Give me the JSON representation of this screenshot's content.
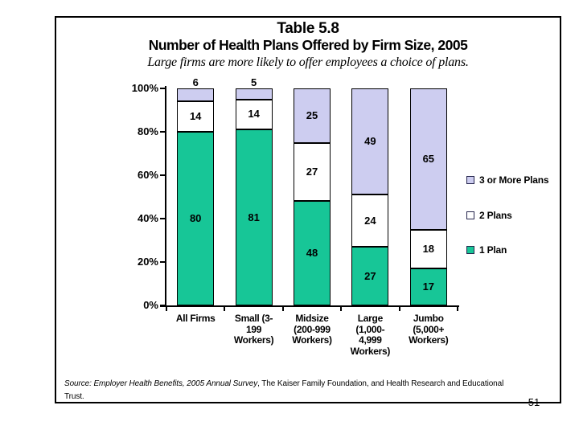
{
  "slide": {
    "title_line1": "Table 5.8",
    "title_line2": "Number of Health Plans Offered by Firm Size, 2005",
    "subtitle": "Large firms are more likely to offer employees a choice of plans.",
    "source": {
      "italic": "Source: Employer Health Benefits, 2005 Annual Survey",
      "regular": ", The Kaiser Family Foundation, and Health Research and Educational Trust."
    },
    "page_number": "51"
  },
  "chart_data": {
    "type": "bar",
    "stacked": true,
    "title": "Number of Health Plans Offered by Firm Size, 2005",
    "categories": [
      "All Firms",
      "Small (3-199 Workers)",
      "Midsize (200-999 Workers)",
      "Large (1,000-4,999 Workers)",
      "Jumbo (5,000+ Workers)"
    ],
    "category_label_lines": [
      [
        "All Firms"
      ],
      [
        "Small (3-",
        "199",
        "Workers)"
      ],
      [
        "Midsize",
        "(200-999",
        "Workers)"
      ],
      [
        "Large",
        "(1,000-",
        "4,999",
        "Workers)"
      ],
      [
        "Jumbo",
        "(5,000+",
        "Workers)"
      ]
    ],
    "series": [
      {
        "name": "1 Plan",
        "color": "#17C697",
        "values": [
          80,
          81,
          48,
          27,
          17
        ]
      },
      {
        "name": "2 Plans",
        "color": "#FFFFFF",
        "values": [
          14,
          14,
          27,
          24,
          18
        ]
      },
      {
        "name": "3 or More Plans",
        "color": "#CDCDF0",
        "values": [
          6,
          5,
          25,
          49,
          65
        ]
      }
    ],
    "y_ticks": [
      0,
      20,
      40,
      60,
      80,
      100
    ],
    "y_tick_labels": [
      "0%",
      "20%",
      "40%",
      "60%",
      "80%",
      "100%"
    ],
    "ylim": [
      0,
      100
    ],
    "unit": "percent",
    "grid": false,
    "legend_position": "right",
    "legend_order": [
      "3 or More Plans",
      "2 Plans",
      "1 Plan"
    ]
  }
}
